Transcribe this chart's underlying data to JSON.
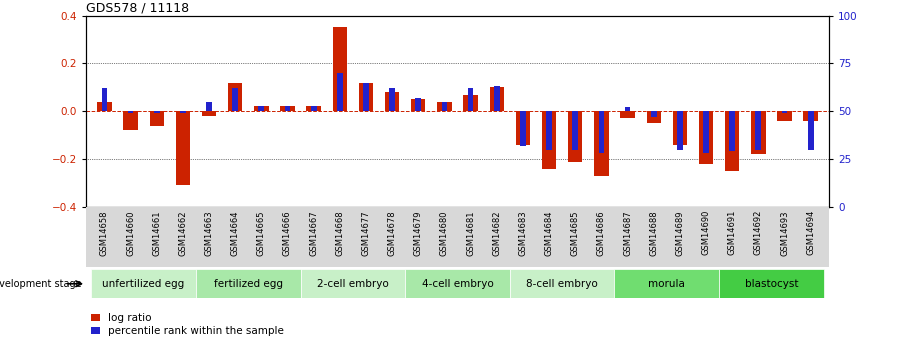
{
  "title": "GDS578 / 11118",
  "samples": [
    "GSM14658",
    "GSM14660",
    "GSM14661",
    "GSM14662",
    "GSM14663",
    "GSM14664",
    "GSM14665",
    "GSM14666",
    "GSM14667",
    "GSM14668",
    "GSM14677",
    "GSM14678",
    "GSM14679",
    "GSM14680",
    "GSM14681",
    "GSM14682",
    "GSM14683",
    "GSM14684",
    "GSM14685",
    "GSM14686",
    "GSM14687",
    "GSM14688",
    "GSM14689",
    "GSM14690",
    "GSM14691",
    "GSM14692",
    "GSM14693",
    "GSM14694"
  ],
  "log_ratio": [
    0.04,
    -0.08,
    -0.06,
    -0.31,
    -0.02,
    0.12,
    0.02,
    0.02,
    0.02,
    0.35,
    0.12,
    0.08,
    0.05,
    0.04,
    0.07,
    0.1,
    -0.14,
    -0.24,
    -0.21,
    -0.27,
    -0.03,
    -0.05,
    -0.14,
    -0.22,
    -0.25,
    -0.18,
    -0.04,
    -0.04
  ],
  "percentile_rank": [
    62,
    49,
    49,
    49,
    55,
    62,
    53,
    53,
    53,
    70,
    65,
    62,
    57,
    55,
    62,
    63,
    32,
    30,
    30,
    28,
    52,
    47,
    30,
    28,
    29,
    30,
    49,
    30
  ],
  "stages": [
    {
      "label": "unfertilized egg",
      "start": 0,
      "end": 4,
      "color": "#c8f0c8"
    },
    {
      "label": "fertilized egg",
      "start": 4,
      "end": 8,
      "color": "#a8e8a8"
    },
    {
      "label": "2-cell embryo",
      "start": 8,
      "end": 12,
      "color": "#c8f0c8"
    },
    {
      "label": "4-cell embryo",
      "start": 12,
      "end": 16,
      "color": "#a8e8a8"
    },
    {
      "label": "8-cell embryo",
      "start": 16,
      "end": 20,
      "color": "#c8f0c8"
    },
    {
      "label": "morula",
      "start": 20,
      "end": 24,
      "color": "#70dd70"
    },
    {
      "label": "blastocyst",
      "start": 24,
      "end": 28,
      "color": "#44cc44"
    }
  ],
  "bar_color": "#cc2200",
  "percentile_color": "#2222cc",
  "ylim": [
    -0.4,
    0.4
  ],
  "y2lim": [
    0,
    100
  ],
  "yticks": [
    -0.4,
    -0.2,
    0.0,
    0.2,
    0.4
  ],
  "y2ticks": [
    0,
    25,
    50,
    75,
    100
  ],
  "bar_width": 0.55,
  "pct_bar_width": 0.22,
  "title_fontsize": 9,
  "tick_fontsize": 7.5,
  "xlabel_fontsize": 6.0,
  "stage_fontsize": 7.5,
  "legend_fontsize": 7.5,
  "dev_stage_label": "development stage",
  "legend_log_ratio": "log ratio",
  "legend_percentile": "percentile rank within the sample"
}
